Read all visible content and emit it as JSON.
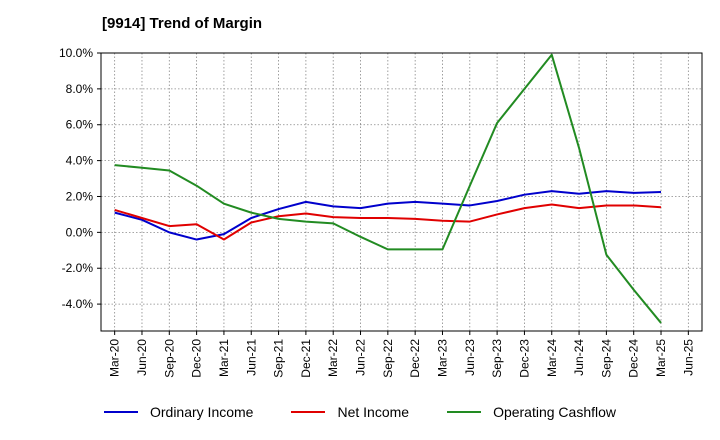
{
  "chart_data": {
    "type": "line",
    "title": "[9914]  Trend of Margin",
    "xlabel": "",
    "ylabel": "",
    "ylim": [
      -5.5,
      10.0
    ],
    "y_ticks": [
      10.0,
      8.0,
      6.0,
      4.0,
      2.0,
      0.0,
      -2.0,
      -4.0
    ],
    "y_tick_labels": [
      "10.0%",
      "8.0%",
      "6.0%",
      "4.0%",
      "2.0%",
      "0.0%",
      "-2.0%",
      "-4.0%"
    ],
    "x_tick_labels": [
      "Mar-20",
      "Jun-20",
      "Sep-20",
      "Dec-20",
      "Mar-21",
      "Jun-21",
      "Sep-21",
      "Dec-21",
      "Mar-22",
      "Jun-22",
      "Sep-22",
      "Dec-22",
      "Mar-23",
      "Jun-23",
      "Sep-23",
      "Dec-23",
      "Mar-24",
      "Jun-24",
      "Sep-24",
      "Dec-24",
      "Mar-25",
      "Jun-25"
    ],
    "grid": true,
    "legend_position": "bottom",
    "x": [
      "Mar-20",
      "Jun-20",
      "Sep-20",
      "Dec-20",
      "Mar-21",
      "Jun-21",
      "Sep-21",
      "Dec-21",
      "Mar-22",
      "Jun-22",
      "Sep-22",
      "Dec-22",
      "Mar-23",
      "Jun-23",
      "Sep-23",
      "Dec-23",
      "Mar-24",
      "Jun-24",
      "Sep-24",
      "Dec-24",
      "Mar-25"
    ],
    "series": [
      {
        "name": "Ordinary Income",
        "color": "#0000cc",
        "values": [
          1.1,
          0.7,
          0.0,
          -0.4,
          -0.1,
          0.8,
          1.3,
          1.7,
          1.45,
          1.35,
          1.6,
          1.7,
          1.6,
          1.5,
          1.75,
          2.1,
          2.3,
          2.15,
          2.3,
          2.2,
          2.25
        ]
      },
      {
        "name": "Net Income",
        "color": "#e00000",
        "values": [
          1.25,
          0.8,
          0.35,
          0.45,
          -0.4,
          0.55,
          0.9,
          1.05,
          0.85,
          0.8,
          0.8,
          0.75,
          0.65,
          0.6,
          1.0,
          1.35,
          1.55,
          1.35,
          1.5,
          1.5,
          1.4
        ]
      },
      {
        "name": "Operating Cashflow",
        "color": "#228b22",
        "values": [
          3.75,
          3.6,
          3.45,
          2.6,
          1.6,
          1.1,
          0.75,
          0.6,
          0.5,
          -0.25,
          -0.95,
          -0.95,
          -0.95,
          2.6,
          6.1,
          8.0,
          9.9,
          4.7,
          -1.25,
          -3.2,
          -5.05
        ]
      }
    ]
  }
}
